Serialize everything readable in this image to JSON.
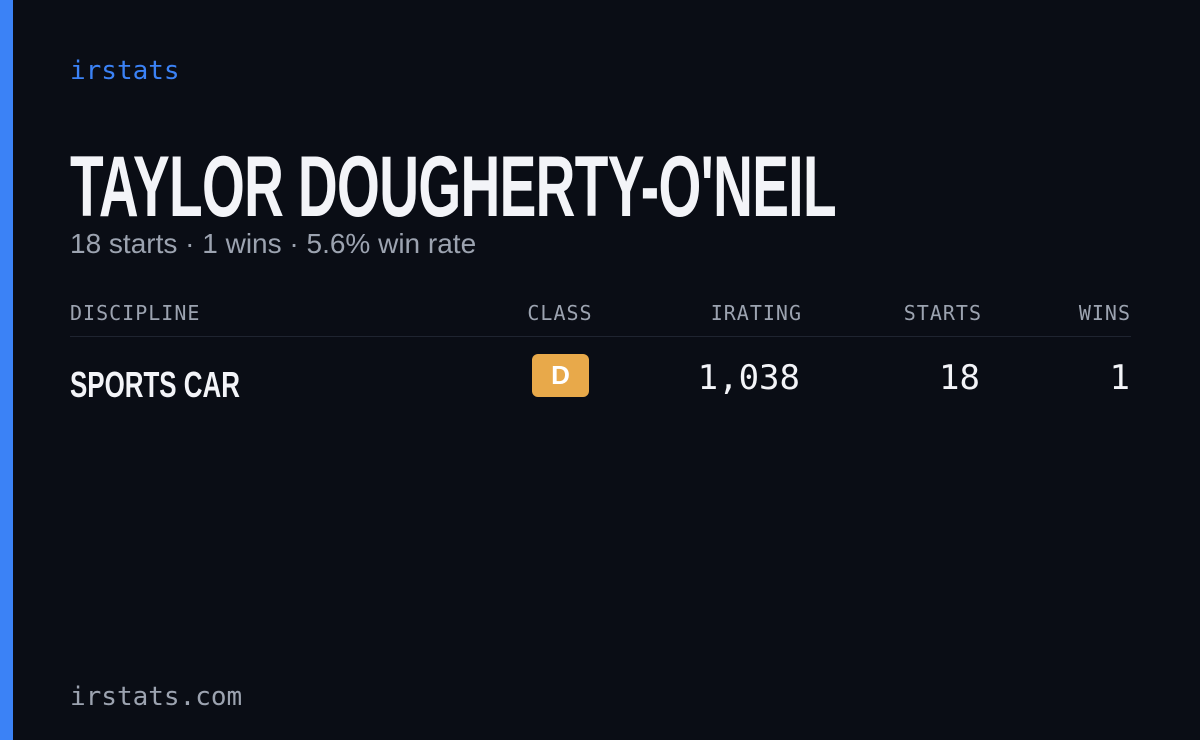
{
  "brand": "irstats",
  "player": {
    "name": "TAYLOR DOUGHERTY-O'NEIL",
    "summary": "18 starts · 1 wins · 5.6% win rate"
  },
  "table": {
    "headers": [
      "DISCIPLINE",
      "CLASS",
      "IRATING",
      "STARTS",
      "WINS"
    ],
    "rows": [
      [
        "SPORTS CAR",
        "D",
        "1,038",
        "18",
        "1"
      ]
    ]
  },
  "footer": "irstats.com"
}
